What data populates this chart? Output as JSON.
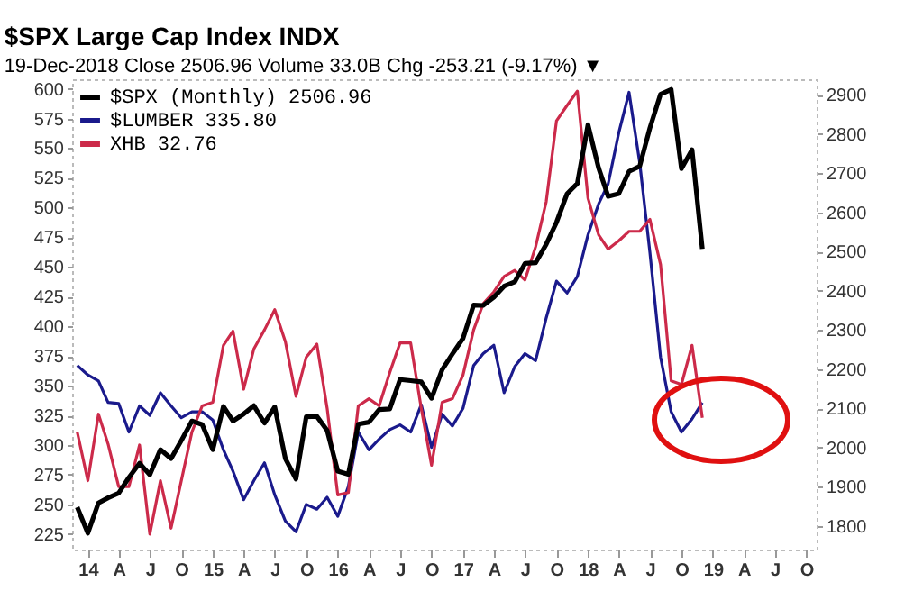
{
  "chart_data": {
    "type": "line",
    "title": "$SPX Large Cap Index INDX",
    "subtitle": "19-Dec-2018     Close 2506.96  Volume 33.0B  Chg -253.21 (-9.17%) ▼",
    "x": [
      "2013-12",
      "2014-01",
      "2014-02",
      "2014-03",
      "2014-04",
      "2014-05",
      "2014-06",
      "2014-07",
      "2014-08",
      "2014-09",
      "2014-10",
      "2014-11",
      "2014-12",
      "2015-01",
      "2015-02",
      "2015-03",
      "2015-04",
      "2015-05",
      "2015-06",
      "2015-07",
      "2015-08",
      "2015-09",
      "2015-10",
      "2015-11",
      "2015-12",
      "2016-01",
      "2016-02",
      "2016-03",
      "2016-04",
      "2016-05",
      "2016-06",
      "2016-07",
      "2016-08",
      "2016-09",
      "2016-10",
      "2016-11",
      "2016-12",
      "2017-01",
      "2017-02",
      "2017-03",
      "2017-04",
      "2017-05",
      "2017-06",
      "2017-07",
      "2017-08",
      "2017-09",
      "2017-10",
      "2017-11",
      "2017-12",
      "2018-01",
      "2018-02",
      "2018-03",
      "2018-04",
      "2018-05",
      "2018-06",
      "2018-07",
      "2018-08",
      "2018-09",
      "2018-10",
      "2018-11",
      "2018-12"
    ],
    "xlim": [
      "2013-11-16",
      "2019-10-31"
    ],
    "xticks": [
      {
        "value": "2014-01",
        "label": "14"
      },
      {
        "value": "2014-04",
        "label": "A"
      },
      {
        "value": "2014-07",
        "label": "J"
      },
      {
        "value": "2014-10",
        "label": "O"
      },
      {
        "value": "2015-01",
        "label": "15"
      },
      {
        "value": "2015-04",
        "label": "A"
      },
      {
        "value": "2015-07",
        "label": "J"
      },
      {
        "value": "2015-10",
        "label": "O"
      },
      {
        "value": "2016-01",
        "label": "16"
      },
      {
        "value": "2016-04",
        "label": "A"
      },
      {
        "value": "2016-07",
        "label": "J"
      },
      {
        "value": "2016-10",
        "label": "O"
      },
      {
        "value": "2017-01",
        "label": "17"
      },
      {
        "value": "2017-04",
        "label": "A"
      },
      {
        "value": "2017-07",
        "label": "J"
      },
      {
        "value": "2017-10",
        "label": "O"
      },
      {
        "value": "2018-01",
        "label": "18"
      },
      {
        "value": "2018-04",
        "label": "A"
      },
      {
        "value": "2018-07",
        "label": "J"
      },
      {
        "value": "2018-10",
        "label": "O"
      },
      {
        "value": "2019-01",
        "label": "19"
      },
      {
        "value": "2019-04",
        "label": "A"
      },
      {
        "value": "2019-07",
        "label": "J"
      },
      {
        "value": "2019-10",
        "label": "O"
      }
    ],
    "ylim": [
      212,
      608
    ],
    "yticks": [
      225,
      250,
      275,
      300,
      325,
      350,
      375,
      400,
      425,
      450,
      475,
      500,
      525,
      550,
      575,
      600
    ],
    "y2lim": [
      1740,
      2940
    ],
    "y2ticks": [
      1800,
      1900,
      2000,
      2100,
      2200,
      2300,
      2400,
      2500,
      2600,
      2700,
      2800,
      2900
    ],
    "legend": "top left",
    "series": [
      {
        "name": "$SPX (Monthly) 2506.96",
        "color": "#000000",
        "axis": "y2",
        "values": [
          1848,
          1782,
          1859,
          1872,
          1884,
          1924,
          1960,
          1931,
          1995,
          1972,
          2018,
          2068,
          2059,
          1995,
          2105,
          2068,
          2086,
          2107,
          2063,
          2104,
          1972,
          1920,
          2079,
          2080,
          2044,
          1940,
          1932,
          2060,
          2065,
          2097,
          2099,
          2174,
          2171,
          2168,
          2126,
          2199,
          2239,
          2279,
          2364,
          2363,
          2384,
          2412,
          2423,
          2470,
          2472,
          2519,
          2575,
          2648,
          2674,
          2824,
          2714,
          2641,
          2648,
          2705,
          2718,
          2816,
          2902,
          2914,
          2712,
          2760,
          2507
        ]
      },
      {
        "name": "$LUMBER 335.80",
        "color": "#1a1a8c",
        "values": [
          367,
          359,
          354,
          336,
          335,
          311,
          333,
          325,
          344,
          333,
          323,
          328,
          328,
          321,
          296,
          278,
          254,
          270,
          285,
          258,
          236,
          227,
          250,
          246,
          256,
          240,
          265,
          311,
          296,
          305,
          313,
          317,
          311,
          334,
          298,
          326,
          316,
          331,
          367,
          377,
          384,
          344,
          366,
          377,
          371,
          407,
          438,
          428,
          442,
          477,
          503,
          520,
          563,
          597,
          538,
          462,
          374,
          328,
          311,
          322,
          335.8
        ]
      },
      {
        "name": "XHB 32.76",
        "color": "#cc2a4a",
        "values": [
          311,
          270,
          326,
          301,
          265,
          265,
          300,
          225,
          270,
          230,
          270,
          311,
          333,
          336,
          384,
          396,
          347,
          381,
          397,
          414,
          387,
          341,
          374,
          385,
          331,
          258,
          260,
          333,
          339,
          333,
          361,
          386,
          386,
          331,
          283,
          336,
          339,
          359,
          397,
          419,
          429,
          442,
          447,
          439,
          467,
          505,
          573,
          586,
          598,
          508,
          477,
          465,
          472,
          480,
          480,
          490,
          452,
          354,
          351,
          384,
          323
        ]
      }
    ]
  }
}
